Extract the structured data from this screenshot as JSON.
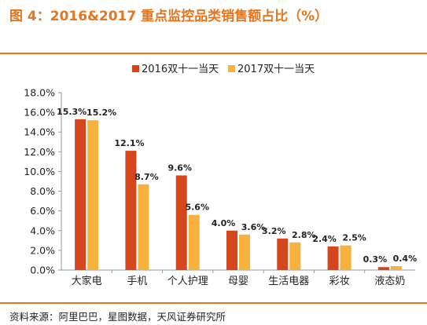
{
  "header": {
    "title": "图 4：2016&2017 重点监控品类销售额占比（%）"
  },
  "footer": {
    "source": "资料来源：阿里巴巴，星图数据，天风证券研究所"
  },
  "colors": {
    "accent": "#e8751a",
    "series_2016": "#d5461d",
    "series_2017": "#f7b13e",
    "axis": "#9a9a9a",
    "text": "#222222"
  },
  "chart_data": {
    "type": "bar",
    "categories": [
      "大家电",
      "手机",
      "个人护理",
      "母婴",
      "生活电器",
      "彩妆",
      "液态奶"
    ],
    "series": [
      {
        "name": "2016双十一当天",
        "values": [
          15.3,
          12.1,
          9.6,
          4.0,
          3.2,
          2.4,
          0.3
        ],
        "labels": [
          "15.3%",
          "12.1%",
          "9.6%",
          "4.0%",
          "3.2%",
          "2.4%",
          "0.3%"
        ]
      },
      {
        "name": "2017双十一当天",
        "values": [
          15.2,
          8.7,
          5.6,
          3.6,
          2.8,
          2.5,
          0.4
        ],
        "labels": [
          "15.2%",
          "8.7%",
          "5.6%",
          "3.6%",
          "2.8%",
          "2.5%",
          "0.4%"
        ]
      }
    ],
    "ylim": [
      0,
      18
    ],
    "yticks": [
      "0.0%",
      "2.0%",
      "4.0%",
      "6.0%",
      "8.0%",
      "10.0%",
      "12.0%",
      "14.0%",
      "16.0%",
      "18.0%"
    ],
    "xlabel": "",
    "ylabel": "",
    "grid": false,
    "legend": "top-center"
  }
}
